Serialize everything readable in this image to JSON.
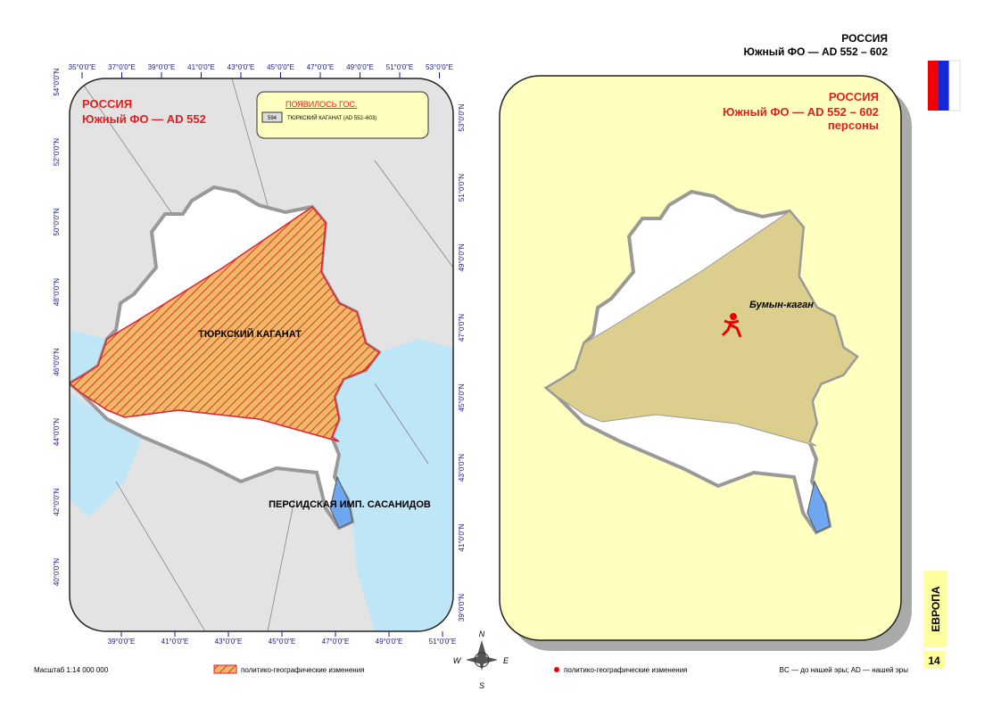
{
  "header": {
    "country": "РОССИЯ",
    "subtitle": "Южный ФО — AD 552 – 602"
  },
  "left_map": {
    "title": "РОССИЯ",
    "subtitle": "Южный ФО — AD 552",
    "legend": {
      "heading": "ПОЯВИЛОСЬ ГОС.",
      "icon": "594",
      "entry": "ТЮРКСКИЙ КАГАНАТ (AD 552–603)"
    },
    "labels": [
      "ТЮРКСКИЙ КАГАНАТ",
      "ПЕРСИДСКАЯ ИМП. САСАНИДОВ"
    ],
    "top_ticks": [
      "35°0'0\"E",
      "37°0'0\"E",
      "39°0'0\"E",
      "41°0'0\"E",
      "43°0'0\"E",
      "45°0'0\"E",
      "47°0'0\"E",
      "49°0'0\"E",
      "51°0'0\"E",
      "53°0'0\"E"
    ],
    "bottom_ticks": [
      "39°0'0\"E",
      "41°0'0\"E",
      "43°0'0\"E",
      "45°0'0\"E",
      "47°0'0\"E",
      "49°0'0\"E",
      "51°0'0\"E"
    ],
    "left_ticks": [
      "54°0'0\"N",
      "52°0'0\"N",
      "50°0'0\"N",
      "48°0'0\"N",
      "46°0'0\"N",
      "44°0'0\"N",
      "42°0'0\"N",
      "40°0'0\"N"
    ],
    "right_ticks": [
      "53°0'0\"N",
      "51°0'0\"N",
      "49°0'0\"N",
      "47°0'0\"N",
      "45°0'0\"N",
      "43°0'0\"N",
      "41°0'0\"N",
      "39°0'0\"N"
    ]
  },
  "right_map": {
    "title": "РОССИЯ",
    "subtitle": "Южный ФО — AD 552 – 602",
    "subtitle2": "персоны",
    "person": "Бумын-каган"
  },
  "compass": {
    "n": "N",
    "s": "S",
    "w": "W",
    "e": "E"
  },
  "footer": {
    "scale": "Масштаб 1:14 000 000",
    "legend_left": "политико-географические изменения",
    "legend_right": "политико-географические изменения",
    "note": "BC — до нашей эры; AD — нашей эры",
    "section": "ЕВРОПА",
    "page": "14"
  }
}
